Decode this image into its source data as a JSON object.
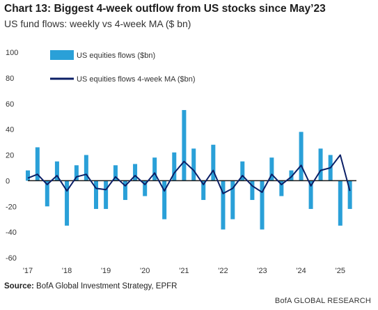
{
  "header": {
    "title": "Chart 13: Biggest 4-week outflow from US stocks since May’23",
    "subtitle": "US fund flows: weekly vs 4-week MA ($ bn)"
  },
  "footer": {
    "source_label": "Source:",
    "source_text": "BofA Global Investment Strategy, EPFR",
    "brand": "BofA GLOBAL RESEARCH"
  },
  "colors": {
    "bars": "#2aa0d8",
    "ma_line": "#0b1f66",
    "zero_line": "#1a1a1a"
  },
  "chart_data": {
    "type": "bar",
    "title": "Chart 13: Biggest 4-week outflow from US stocks since May’23",
    "subtitle": "US fund flows: weekly vs 4-week MA ($ bn)",
    "x_ticks": [
      "'17",
      "'18",
      "'19",
      "'20",
      "'21",
      "'22",
      "'23",
      "'24",
      "'25"
    ],
    "ylim": [
      -60,
      100
    ],
    "y_ticks": [
      100,
      80,
      60,
      40,
      20,
      0,
      -20,
      -40,
      -60
    ],
    "y_tick_labels": [
      "100",
      "80",
      "60",
      "40",
      "20",
      "0",
      "-20",
      "-40",
      "-60"
    ],
    "grid": false,
    "legend_position": "top-left",
    "series": [
      {
        "name": "US equities flows ($bn)",
        "kind": "bar",
        "x": [
          "2017-01",
          "2017-04",
          "2017-07",
          "2017-10",
          "2018-01",
          "2018-04",
          "2018-07",
          "2018-10",
          "2019-01",
          "2019-04",
          "2019-07",
          "2019-10",
          "2020-01",
          "2020-04",
          "2020-07",
          "2020-10",
          "2021-01",
          "2021-04",
          "2021-07",
          "2021-10",
          "2022-01",
          "2022-04",
          "2022-07",
          "2022-10",
          "2023-01",
          "2023-04",
          "2023-07",
          "2023-10",
          "2024-01",
          "2024-04",
          "2024-07",
          "2024-10",
          "2025-01",
          "2025-04"
        ],
        "values": [
          8,
          26,
          -20,
          15,
          -35,
          12,
          20,
          -22,
          -22,
          12,
          -15,
          13,
          -12,
          18,
          -30,
          22,
          55,
          25,
          -15,
          28,
          -38,
          -30,
          15,
          -15,
          -38,
          18,
          -12,
          8,
          38,
          -22,
          25,
          20,
          -35,
          -22
        ]
      },
      {
        "name": "US equities flows 4-week MA ($bn)",
        "kind": "line",
        "x": [
          "2017-01",
          "2017-04",
          "2017-07",
          "2017-10",
          "2018-01",
          "2018-04",
          "2018-07",
          "2018-10",
          "2019-01",
          "2019-04",
          "2019-07",
          "2019-10",
          "2020-01",
          "2020-04",
          "2020-07",
          "2020-10",
          "2021-01",
          "2021-04",
          "2021-07",
          "2021-10",
          "2022-01",
          "2022-04",
          "2022-07",
          "2022-10",
          "2023-01",
          "2023-04",
          "2023-07",
          "2023-10",
          "2024-01",
          "2024-04",
          "2024-07",
          "2024-10",
          "2025-01",
          "2025-04"
        ],
        "values": [
          2,
          5,
          -3,
          4,
          -8,
          3,
          5,
          -6,
          -7,
          3,
          -4,
          4,
          -3,
          6,
          -8,
          6,
          15,
          8,
          -3,
          8,
          -10,
          -6,
          4,
          -4,
          -9,
          5,
          -3,
          3,
          12,
          -4,
          8,
          10,
          20,
          -8
        ]
      }
    ]
  }
}
